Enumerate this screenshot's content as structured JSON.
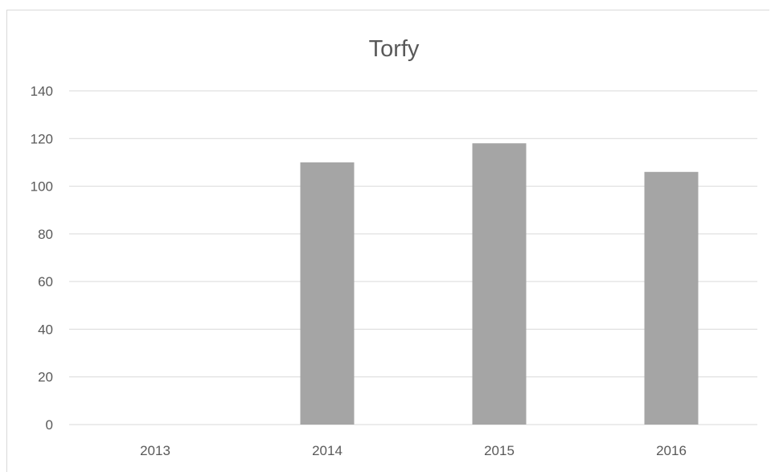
{
  "chart_data": {
    "type": "bar",
    "title": "Torfy",
    "xlabel": "",
    "ylabel": "",
    "categories": [
      "2013",
      "2014",
      "2015",
      "2016"
    ],
    "values": [
      0,
      110,
      118,
      106
    ],
    "ylim": [
      0,
      140
    ],
    "yticks": [
      0,
      20,
      40,
      60,
      80,
      100,
      120,
      140
    ],
    "grid": true,
    "legend": "none",
    "bar_color": "#a5a5a5",
    "grid_color": "#d9d9d9",
    "text_color": "#595959"
  }
}
